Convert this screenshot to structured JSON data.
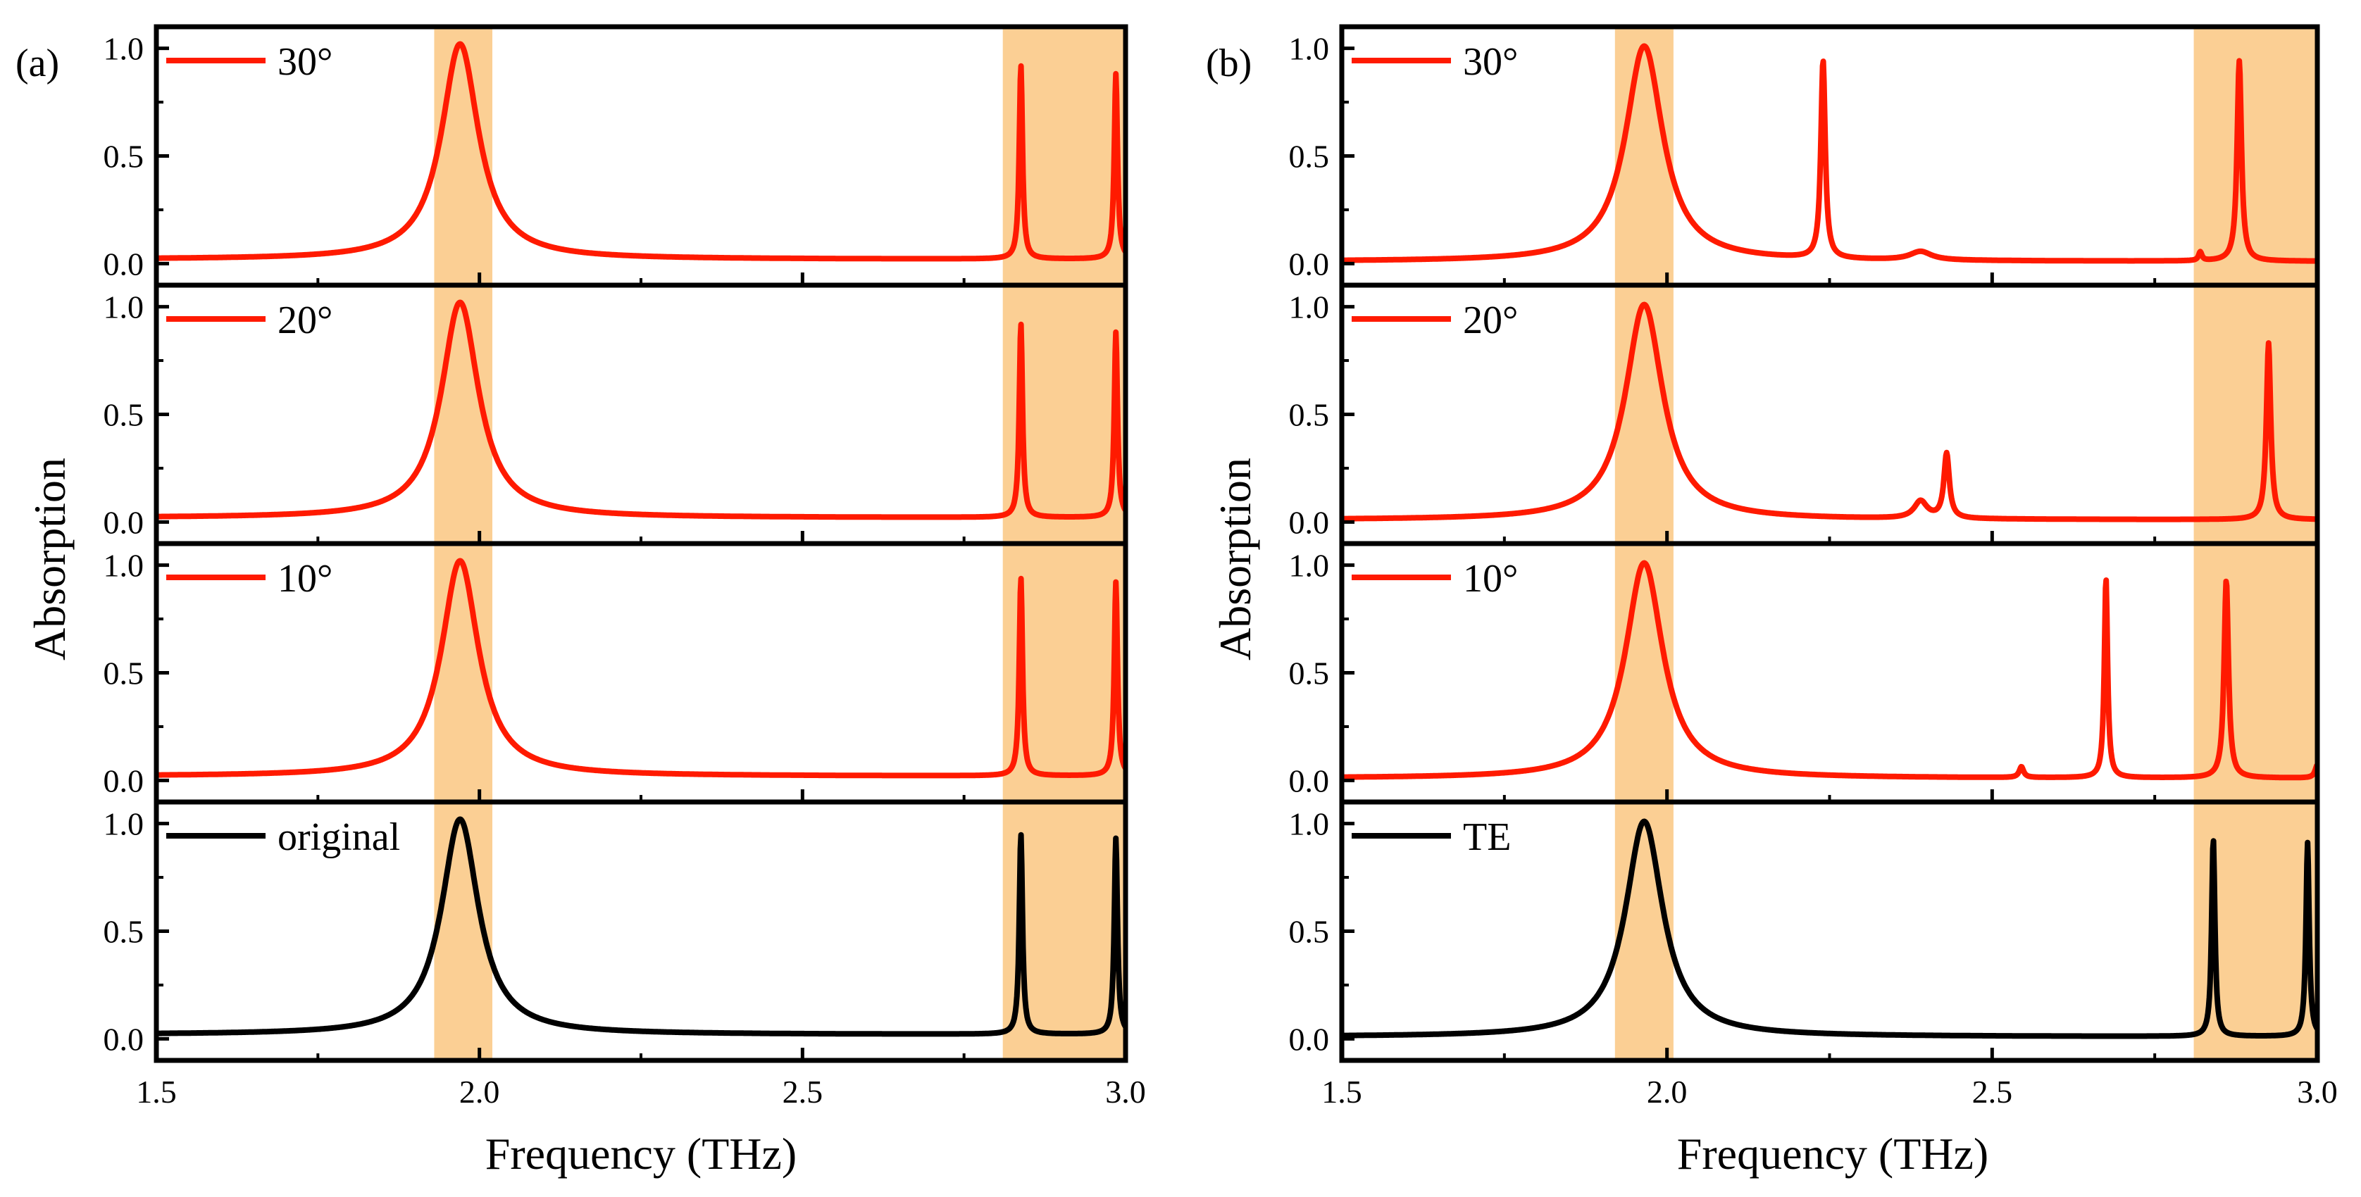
{
  "chart_data": [
    {
      "panel_label": "(a)",
      "type": "line",
      "xlabel": "Frequency (THz)",
      "ylabel": "Absorption",
      "xlim": [
        1.5,
        3.0
      ],
      "ylim": [
        -0.1,
        1.1
      ],
      "x_ticks": [
        "1.5",
        "2.0",
        "2.5",
        "3.0"
      ],
      "y_ticks": [
        "0.0",
        "0.5",
        "1.0"
      ],
      "grid": false,
      "highlight_bands": [
        [
          1.93,
          2.02
        ],
        [
          2.81,
          3.0
        ]
      ],
      "highlight_color": "#fbcf94",
      "subplots": [
        {
          "legend": "30°",
          "color": "#ff1a00",
          "baseline": 0.02,
          "peaks": [
            {
              "x0": 1.97,
              "amp": 1.0,
              "w": 0.035
            },
            {
              "x0": 2.838,
              "amp": 0.9,
              "w": 0.003
            },
            {
              "x0": 2.985,
              "amp": 0.86,
              "w": 0.003
            }
          ]
        },
        {
          "legend": "20°",
          "color": "#ff1a00",
          "baseline": 0.02,
          "peaks": [
            {
              "x0": 1.97,
              "amp": 1.0,
              "w": 0.035
            },
            {
              "x0": 2.838,
              "amp": 0.9,
              "w": 0.003
            },
            {
              "x0": 2.985,
              "amp": 0.86,
              "w": 0.003
            }
          ]
        },
        {
          "legend": "10°",
          "color": "#ff1a00",
          "baseline": 0.02,
          "peaks": [
            {
              "x0": 1.97,
              "amp": 1.0,
              "w": 0.035
            },
            {
              "x0": 2.838,
              "amp": 0.92,
              "w": 0.003
            },
            {
              "x0": 2.985,
              "amp": 0.9,
              "w": 0.003
            }
          ]
        },
        {
          "legend": "original",
          "color": "#000000",
          "baseline": 0.02,
          "peaks": [
            {
              "x0": 1.97,
              "amp": 1.0,
              "w": 0.035
            },
            {
              "x0": 2.838,
              "amp": 0.93,
              "w": 0.003
            },
            {
              "x0": 2.985,
              "amp": 0.91,
              "w": 0.003
            }
          ]
        }
      ]
    },
    {
      "panel_label": "(b)",
      "type": "line",
      "xlabel": "Frequency (THz)",
      "ylabel": "Absorption",
      "xlim": [
        1.5,
        3.0
      ],
      "ylim": [
        -0.1,
        1.1
      ],
      "x_ticks": [
        "1.5",
        "2.0",
        "2.5",
        "3.0"
      ],
      "y_ticks": [
        "0.0",
        "0.5",
        "1.0"
      ],
      "grid": false,
      "highlight_bands": [
        [
          1.92,
          2.01
        ],
        [
          2.81,
          3.0
        ]
      ],
      "highlight_color": "#fbcf94",
      "subplots": [
        {
          "legend": "30°",
          "color": "#ff1a00",
          "baseline": 0.01,
          "peaks": [
            {
              "x0": 1.965,
              "amp": 1.0,
              "w": 0.035
            },
            {
              "x0": 2.24,
              "amp": 0.92,
              "w": 0.004
            },
            {
              "x0": 2.39,
              "amp": 0.04,
              "w": 0.02
            },
            {
              "x0": 2.82,
              "amp": 0.04,
              "w": 0.003
            },
            {
              "x0": 2.88,
              "amp": 0.93,
              "w": 0.004
            }
          ]
        },
        {
          "legend": "20°",
          "color": "#ff1a00",
          "baseline": 0.01,
          "peaks": [
            {
              "x0": 1.965,
              "amp": 1.0,
              "w": 0.035
            },
            {
              "x0": 2.39,
              "amp": 0.08,
              "w": 0.012
            },
            {
              "x0": 2.43,
              "amp": 0.3,
              "w": 0.005
            },
            {
              "x0": 2.925,
              "amp": 0.82,
              "w": 0.004
            }
          ]
        },
        {
          "legend": "10°",
          "color": "#ff1a00",
          "baseline": 0.01,
          "peaks": [
            {
              "x0": 1.965,
              "amp": 1.0,
              "w": 0.035
            },
            {
              "x0": 2.545,
              "amp": 0.05,
              "w": 0.004
            },
            {
              "x0": 2.675,
              "amp": 0.93,
              "w": 0.003
            },
            {
              "x0": 2.86,
              "amp": 0.92,
              "w": 0.004
            },
            {
              "x0": 3.0,
              "amp": 0.06,
              "w": 0.004
            }
          ]
        },
        {
          "legend": "TE",
          "color": "#000000",
          "baseline": 0.01,
          "peaks": [
            {
              "x0": 1.965,
              "amp": 1.0,
              "w": 0.035
            },
            {
              "x0": 2.84,
              "amp": 0.92,
              "w": 0.003
            },
            {
              "x0": 2.985,
              "amp": 0.9,
              "w": 0.003
            }
          ]
        }
      ]
    }
  ]
}
